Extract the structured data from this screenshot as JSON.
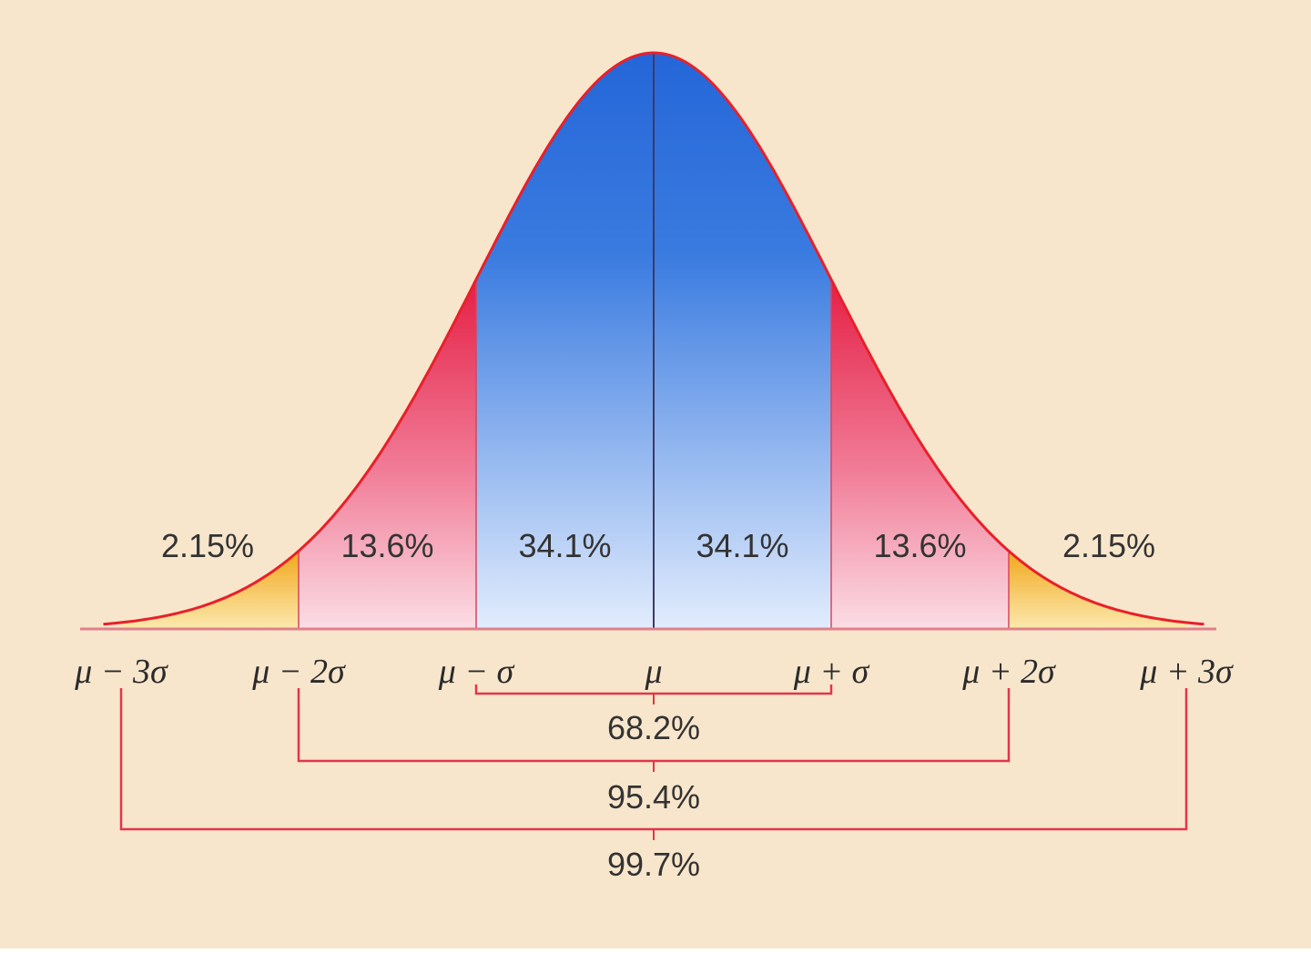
{
  "colors": {
    "background": "#f8e6cc",
    "curve": "#e8202a",
    "center_band": "#2f6fd6",
    "center_band_light": "#dde8fb",
    "inner_tail": "#e51f45",
    "inner_tail_light": "#f9d7e0",
    "outer_tail": "#f2b31f",
    "outer_tail_light": "#fbe6a8",
    "bracket": "#e2364a",
    "text": "#333333"
  },
  "chart_data": {
    "type": "area",
    "distribution": "normal",
    "xlim": [
      -3.1,
      3.1
    ],
    "regions": [
      {
        "from": -3,
        "to": -2,
        "percent": "2.15%",
        "color_key": "outer_tail"
      },
      {
        "from": -2,
        "to": -1,
        "percent": "13.6%",
        "color_key": "inner_tail"
      },
      {
        "from": -1,
        "to": 0,
        "percent": "34.1%",
        "color_key": "center_band"
      },
      {
        "from": 0,
        "to": 1,
        "percent": "34.1%",
        "color_key": "center_band"
      },
      {
        "from": 1,
        "to": 2,
        "percent": "13.6%",
        "color_key": "inner_tail"
      },
      {
        "from": 2,
        "to": 3,
        "percent": "2.15%",
        "color_key": "outer_tail"
      }
    ],
    "ticks": [
      {
        "x": -3,
        "left": "μ − 3σ"
      },
      {
        "x": -2,
        "left": "μ − 2σ"
      },
      {
        "x": -1,
        "left": "μ − σ"
      },
      {
        "x": 0,
        "left": "μ"
      },
      {
        "x": 1,
        "left": "μ + σ"
      },
      {
        "x": 2,
        "left": "μ + 2σ"
      },
      {
        "x": 3,
        "left": "μ + 3σ"
      }
    ],
    "brackets": [
      {
        "from": -1,
        "to": 1,
        "label": "68.2%"
      },
      {
        "from": -2,
        "to": 2,
        "label": "95.4%"
      },
      {
        "from": -3,
        "to": 3,
        "label": "99.7%"
      }
    ]
  }
}
